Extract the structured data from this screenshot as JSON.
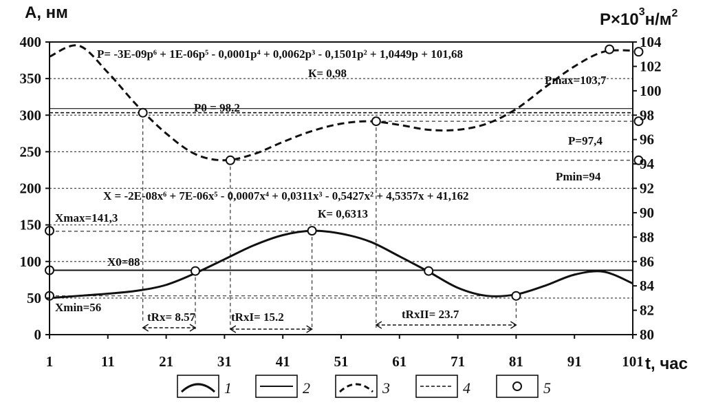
{
  "chart_data": {
    "type": "line",
    "left_axis": {
      "title": "А, нм",
      "range": [
        0,
        400
      ],
      "ticks": [
        "0",
        "50",
        "100",
        "150",
        "200",
        "250",
        "300",
        "350",
        "400"
      ]
    },
    "right_axis": {
      "title_main": "P×10",
      "title_sup": "3",
      "title_unit": "н/м",
      "title_unit_sup": "2",
      "range": [
        80,
        104
      ],
      "ticks": [
        "80",
        "82",
        "84",
        "86",
        "88",
        "90",
        "92",
        "94",
        "96",
        "98",
        "100",
        "102",
        "104"
      ]
    },
    "x_axis": {
      "title": "t, час",
      "range": [
        1,
        101
      ],
      "ticks": [
        "1",
        "11",
        "21",
        "31",
        "41",
        "51",
        "61",
        "71",
        "81",
        "91",
        "101"
      ]
    },
    "gridlines_left": [
      50,
      100,
      150,
      200,
      250,
      300,
      350
    ],
    "series": [
      {
        "legend": "1",
        "style": "solid",
        "axis": "left",
        "x": [
          1,
          6,
          11,
          16,
          21,
          26,
          31,
          36,
          41,
          46,
          51,
          56,
          61,
          66,
          71,
          76,
          81,
          86,
          91,
          96,
          101
        ],
        "y": [
          50,
          53,
          56,
          60,
          68,
          84,
          103,
          122,
          136,
          142,
          138,
          127,
          107,
          86,
          64,
          53,
          55,
          67,
          82,
          86,
          70
        ]
      },
      {
        "legend": "2",
        "style": "solid-thin",
        "axis": "left",
        "level": 88
      },
      {
        "legend": "3",
        "style": "dashed",
        "axis": "right",
        "x": [
          1,
          6,
          11,
          16,
          21,
          26,
          31,
          36,
          41,
          46,
          51,
          56,
          61,
          66,
          71,
          76,
          81,
          86,
          91,
          96,
          101
        ],
        "y": [
          102.8,
          103.7,
          101.5,
          98.8,
          96.5,
          94.8,
          94.3,
          94.8,
          95.8,
          96.7,
          97.3,
          97.5,
          97.2,
          96.8,
          96.8,
          97.3,
          98.5,
          100.3,
          102.0,
          103.2,
          103.3
        ]
      },
      {
        "legend": "4",
        "style": "dashed-thin",
        "axis": "right",
        "level": 98.2
      },
      {
        "legend": "5",
        "style": "circle-markers",
        "points_left": [
          [
            1,
            142
          ],
          [
            1,
            88
          ],
          [
            1,
            53
          ],
          [
            26,
            87
          ],
          [
            46,
            142
          ],
          [
            66,
            87
          ],
          [
            81,
            53
          ]
        ],
        "points_right": [
          [
            17,
            98.2
          ],
          [
            32,
            94.3
          ],
          [
            57,
            97.5
          ],
          [
            97,
            103.4
          ],
          [
            102,
            103.2
          ],
          [
            102,
            97.5
          ],
          [
            102,
            94.3
          ]
        ]
      }
    ],
    "annotations": {
      "p_equation": "P= -3E-09p⁶ + 1E-06p⁵ - 0,0001p⁴ + 0,0062p³ - 0,1501p² + 1,0449p + 101,68",
      "p_k": "К= 0,98",
      "p_max": "Pmax=103,7",
      "p0": "P0 = 98.2",
      "x_equation": "X = -2E-08x⁶ + 7E-06x⁵ - 0,0007x⁴ + 0,0311x³ - 0,5427x² + 4,5357x + 41,162",
      "x_k": "К= 0,6313",
      "x_max": "Xmax=141,3",
      "x0": "X0=88",
      "x_min": "Xmin=56",
      "tr1": "tRx= 8.57",
      "tr2": "tRxI= 15.2",
      "tr3": "tRxII= 23.7",
      "p_partial_1": "P=97,4",
      "p_partial_2": "Pmin=94"
    },
    "legend": [
      "1",
      "2",
      "3",
      "4",
      "5"
    ]
  }
}
